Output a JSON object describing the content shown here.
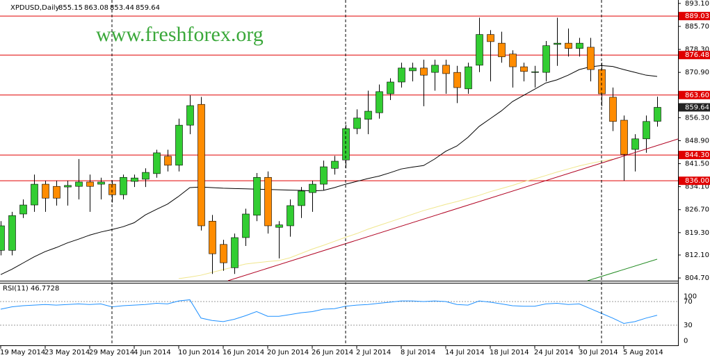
{
  "chart_data": [
    {
      "type": "candlestick",
      "title": "XPDUSD,Daily",
      "header_values": [
        855.15,
        863.08,
        853.44,
        859.64
      ],
      "watermark": "www.freshforex.org",
      "categories": [
        "19 May 2014",
        null,
        null,
        null,
        "23 May 2014",
        null,
        null,
        null,
        "29 May 2014",
        null,
        null,
        null,
        "4 Jun 2014",
        null,
        null,
        null,
        "10 Jun 2014",
        null,
        null,
        null,
        "16 Jun 2014",
        null,
        null,
        null,
        "20 Jun 2014",
        null,
        null,
        null,
        "26 Jun 2014",
        null,
        null,
        null,
        "2 Jul 2014",
        null,
        null,
        null,
        "8 Jul 2014",
        null,
        null,
        null,
        "14 Jul 2014",
        null,
        null,
        null,
        "18 Jul 2014",
        null,
        null,
        null,
        "24 Jul 2014",
        null,
        null,
        null,
        "30 Jul 2014",
        null,
        null,
        null,
        "5 Aug 2014",
        null,
        null,
        null
      ],
      "open": [
        813.6,
        813.6,
        825.3,
        828.2,
        834.9,
        834.2,
        834.0,
        834.2,
        835.6,
        834.9,
        834.9,
        831.5,
        835.8,
        836.5,
        838.3,
        843.9,
        841.0,
        853.9,
        860.6,
        823.0,
        815.5,
        808.0,
        817.7,
        824.9,
        837.1,
        821.0,
        821.5,
        828.0,
        832.2,
        834.9,
        840.0,
        842.7,
        852.8,
        855.8,
        857.9,
        864.0,
        867.8,
        871.4,
        872.3,
        870.9,
        873.2,
        870.9,
        865.6,
        873.2,
        883.1,
        880.3,
        876.8,
        872.7,
        870.9,
        870.9,
        879.9,
        880.3,
        878.6,
        879.0,
        871.8,
        862.9,
        855.5,
        846.1,
        849.5,
        855.15
      ],
      "high": [
        823,
        826,
        830,
        838,
        836,
        836,
        836,
        843,
        838,
        837,
        836,
        838,
        838,
        840,
        846,
        846,
        856,
        863.5,
        863,
        825,
        817,
        819,
        827,
        838.5,
        839,
        823,
        830,
        834,
        836,
        842.5,
        844,
        854,
        859,
        865,
        867,
        869,
        874,
        874,
        875,
        875,
        875,
        873,
        874,
        888.5,
        884.5,
        884,
        878,
        874,
        873,
        881,
        888.5,
        885,
        882,
        882,
        874,
        866,
        857,
        851,
        857,
        863.08
      ],
      "low": [
        812,
        812,
        824,
        826,
        826,
        828,
        828,
        830,
        826,
        830,
        829,
        830,
        834,
        834,
        837,
        839,
        839,
        851,
        820,
        806,
        807,
        806,
        815,
        823,
        819,
        811,
        818,
        824,
        826,
        833,
        838,
        840,
        851,
        851,
        856,
        862,
        866,
        868,
        860,
        865,
        864,
        861,
        864,
        871,
        868,
        874,
        866,
        868,
        866,
        868,
        873,
        876,
        876,
        868,
        860,
        852,
        836,
        839,
        845,
        853.44
      ],
      "close": [
        821.5,
        824.8,
        828.2,
        834.9,
        830.4,
        830.4,
        834.5,
        835.6,
        834.2,
        835.6,
        831.5,
        837.1,
        836.9,
        838.7,
        845.0,
        841.0,
        853.9,
        860.2,
        821.5,
        812.5,
        809.6,
        817.7,
        825.3,
        837.1,
        821.5,
        821.8,
        828.0,
        832.7,
        834.9,
        840.5,
        842.3,
        852.8,
        856.2,
        858.4,
        864.7,
        867.8,
        872.3,
        872.3,
        870.0,
        873.2,
        870.5,
        866.0,
        872.7,
        883.1,
        880.8,
        875.9,
        872.7,
        871.2,
        871.1,
        879.5,
        880.3,
        878.6,
        880.3,
        871.8,
        864.0,
        855.1,
        844.5,
        849.5,
        855.1,
        859.64
      ],
      "up_color": "#32cd32",
      "down_color": "#ff8c00",
      "lines": [
        {
          "color": "#000000",
          "values": [
            805.8,
            807.5,
            809.5,
            811.5,
            813.2,
            814.5,
            816,
            817.2,
            818.5,
            819.5,
            820.3,
            821.2,
            822.5,
            825,
            826.8,
            828.5,
            831,
            833.8,
            834,
            833.8,
            833.6,
            833.5,
            833.4,
            833.3,
            833.2,
            833.1,
            833,
            832.9,
            832.7,
            832.9,
            833.8,
            834.9,
            835.8,
            836.7,
            837.5,
            838.6,
            839.8,
            840.4,
            840.9,
            843,
            845.5,
            847.2,
            850,
            853.5,
            856,
            858.5,
            861.5,
            863.5,
            865.5,
            867.5,
            868.5,
            870,
            871.8,
            872.7,
            873.1,
            872.8,
            871.8,
            870.9,
            870,
            869.6
          ]
        },
        {
          "color": "#f0e68c",
          "values": [
            null,
            null,
            null,
            null,
            null,
            null,
            null,
            null,
            null,
            null,
            null,
            null,
            null,
            null,
            null,
            null,
            804.5,
            805,
            805.6,
            806.5,
            807.4,
            808.3,
            809.2,
            809.6,
            810,
            810.3,
            811.2,
            812.6,
            814,
            815.2,
            816.5,
            817.8,
            819,
            820.4,
            821.6,
            822.8,
            824,
            825.2,
            826.4,
            827.4,
            828.4,
            829.3,
            830.3,
            831.3,
            832.5,
            833.5,
            834.5,
            835.7,
            836.6,
            837.7,
            838.8,
            839.8,
            840.8,
            841.6,
            842.3,
            843,
            null,
            null,
            null,
            null
          ]
        }
      ],
      "levels": [
        {
          "value": 889.03,
          "label": "889.03"
        },
        {
          "value": 876.48,
          "label": "876.48"
        },
        {
          "value": 863.6,
          "label": "863.60"
        },
        {
          "value": 844.3,
          "label": "844.30"
        },
        {
          "value": 836,
          "label": "836.00"
        }
      ],
      "level_color": "#e00000",
      "current_price": 859.64,
      "ylim": [
        803.6,
        894.2
      ],
      "yticks": [
        {
          "value": 893.1,
          "label": "893.10"
        },
        {
          "value": 885.7,
          "label": "885.70"
        },
        {
          "value": 878.3,
          "label": "878.30"
        },
        {
          "value": 870.9,
          "label": "870.90"
        },
        {
          "value": 856.3,
          "label": "856.30"
        },
        {
          "value": 848.9,
          "label": "848.90"
        },
        {
          "value": 841.5,
          "label": "841.50"
        },
        {
          "value": 834.1,
          "label": "834.10"
        },
        {
          "value": 826.7,
          "label": "826.70"
        },
        {
          "value": 819.3,
          "label": "819.30"
        },
        {
          "value": 812.1,
          "label": "812.10"
        },
        {
          "value": 804.7,
          "label": "804.70"
        }
      ]
    },
    {
      "type": "line",
      "title": "RSI(11) 46.7728",
      "color": "#1e90ff",
      "values": [
        57,
        61,
        63,
        64,
        65,
        64,
        65,
        66,
        65,
        66,
        61,
        63,
        64,
        65,
        67,
        66,
        71,
        73,
        42,
        38,
        36,
        40,
        46,
        53,
        45,
        45,
        48,
        51,
        53,
        57,
        58,
        62,
        64,
        65,
        67,
        69,
        71,
        71,
        70,
        71,
        70,
        65,
        64,
        71,
        69,
        66,
        63,
        62,
        62,
        66,
        67,
        65,
        66,
        58,
        50,
        42,
        33,
        36,
        42,
        46.7728
      ],
      "ylim": [
        0,
        100
      ],
      "yticks": [
        100,
        70,
        30,
        0
      ]
    }
  ]
}
